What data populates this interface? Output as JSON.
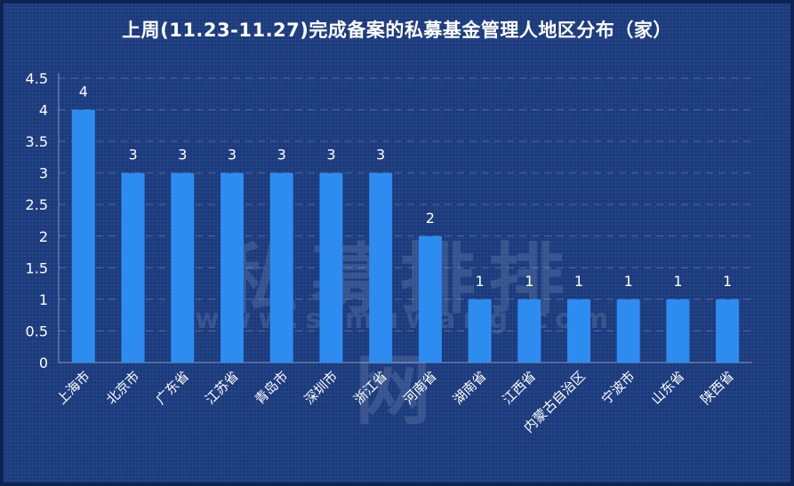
{
  "chart_data": {
    "type": "bar",
    "title": "上周(11.23-11.27)完成备案的私募基金管理人地区分布（家）",
    "categories": [
      "上海市",
      "北京市",
      "广东省",
      "江苏省",
      "青岛市",
      "深圳市",
      "浙江省",
      "河南省",
      "湖南省",
      "江西省",
      "内蒙古自治区",
      "宁波市",
      "山东省",
      "陕西省"
    ],
    "values": [
      4,
      3,
      3,
      3,
      3,
      3,
      3,
      2,
      1,
      1,
      1,
      1,
      1,
      1
    ],
    "ylim": [
      0,
      4.5
    ],
    "yticks": [
      "0",
      "0.5",
      "1",
      "1.5",
      "2",
      "2.5",
      "3",
      "3.5",
      "4",
      "4.5"
    ],
    "grid": true,
    "data_labels": [
      "4",
      "3",
      "3",
      "3",
      "3",
      "3",
      "3",
      "2",
      "1",
      "1",
      "1",
      "1",
      "1",
      "1"
    ],
    "bar_color": "#2d8cf0",
    "background_color": "#1a3a7c"
  },
  "watermark": {
    "main": "私募排排网",
    "sub": "www.simuwang.com"
  }
}
